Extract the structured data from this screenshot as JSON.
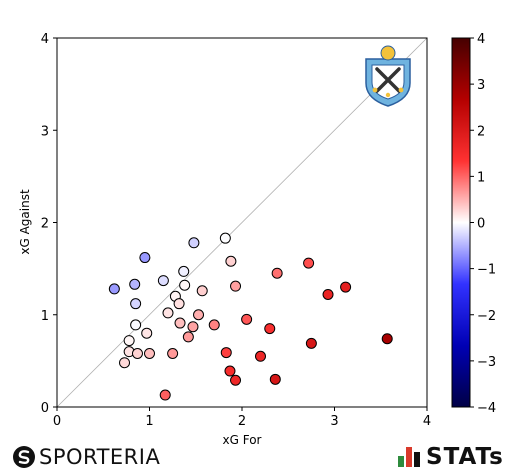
{
  "chart_data": {
    "type": "scatter",
    "xlabel": "xG For",
    "ylabel": "xG Against",
    "xlim": [
      0,
      4
    ],
    "ylim": [
      0,
      4
    ],
    "x_ticks": [
      "0",
      "1",
      "2",
      "3",
      "4"
    ],
    "y_ticks": [
      "0",
      "1",
      "2",
      "3",
      "4"
    ],
    "reference_line": "diagonal y = x",
    "grid": false,
    "color_encoding": "xG For minus xG Against",
    "colorbar": {
      "min": -4,
      "max": 4,
      "ticks": [
        "−4",
        "−3",
        "−2",
        "−1",
        "0",
        "1",
        "2",
        "3",
        "4"
      ],
      "colors": [
        "#000046",
        "#0000b4",
        "#3232ff",
        "#ffffff",
        "#ff3232",
        "#b40000",
        "#460000"
      ]
    },
    "points": [
      {
        "x": 0.62,
        "y": 1.28
      },
      {
        "x": 0.84,
        "y": 1.33
      },
      {
        "x": 0.95,
        "y": 1.62
      },
      {
        "x": 1.48,
        "y": 1.78
      },
      {
        "x": 1.82,
        "y": 1.83
      },
      {
        "x": 0.85,
        "y": 1.12
      },
      {
        "x": 1.15,
        "y": 1.37
      },
      {
        "x": 1.37,
        "y": 1.47
      },
      {
        "x": 1.38,
        "y": 1.32
      },
      {
        "x": 1.28,
        "y": 1.2
      },
      {
        "x": 1.32,
        "y": 1.12
      },
      {
        "x": 1.88,
        "y": 1.58
      },
      {
        "x": 1.93,
        "y": 1.31
      },
      {
        "x": 2.38,
        "y": 1.45
      },
      {
        "x": 2.72,
        "y": 1.56
      },
      {
        "x": 1.57,
        "y": 1.26
      },
      {
        "x": 1.2,
        "y": 1.02
      },
      {
        "x": 1.53,
        "y": 1.0
      },
      {
        "x": 0.85,
        "y": 0.89
      },
      {
        "x": 0.97,
        "y": 0.8
      },
      {
        "x": 1.33,
        "y": 0.91
      },
      {
        "x": 1.47,
        "y": 0.87
      },
      {
        "x": 1.42,
        "y": 0.76
      },
      {
        "x": 1.7,
        "y": 0.89
      },
      {
        "x": 2.05,
        "y": 0.95
      },
      {
        "x": 2.3,
        "y": 0.85
      },
      {
        "x": 2.93,
        "y": 1.22
      },
      {
        "x": 3.12,
        "y": 1.3
      },
      {
        "x": 0.78,
        "y": 0.72
      },
      {
        "x": 0.78,
        "y": 0.6
      },
      {
        "x": 0.87,
        "y": 0.58
      },
      {
        "x": 1.0,
        "y": 0.58
      },
      {
        "x": 0.73,
        "y": 0.48
      },
      {
        "x": 1.25,
        "y": 0.58
      },
      {
        "x": 1.83,
        "y": 0.59
      },
      {
        "x": 2.2,
        "y": 0.55
      },
      {
        "x": 2.75,
        "y": 0.69
      },
      {
        "x": 3.57,
        "y": 0.74
      },
      {
        "x": 1.87,
        "y": 0.39
      },
      {
        "x": 1.93,
        "y": 0.29
      },
      {
        "x": 2.36,
        "y": 0.3
      },
      {
        "x": 1.17,
        "y": 0.13
      }
    ]
  },
  "logos": {
    "team_crest": "team-crest",
    "left_brand": "SPORTERIA",
    "right_brand": "STATs"
  }
}
